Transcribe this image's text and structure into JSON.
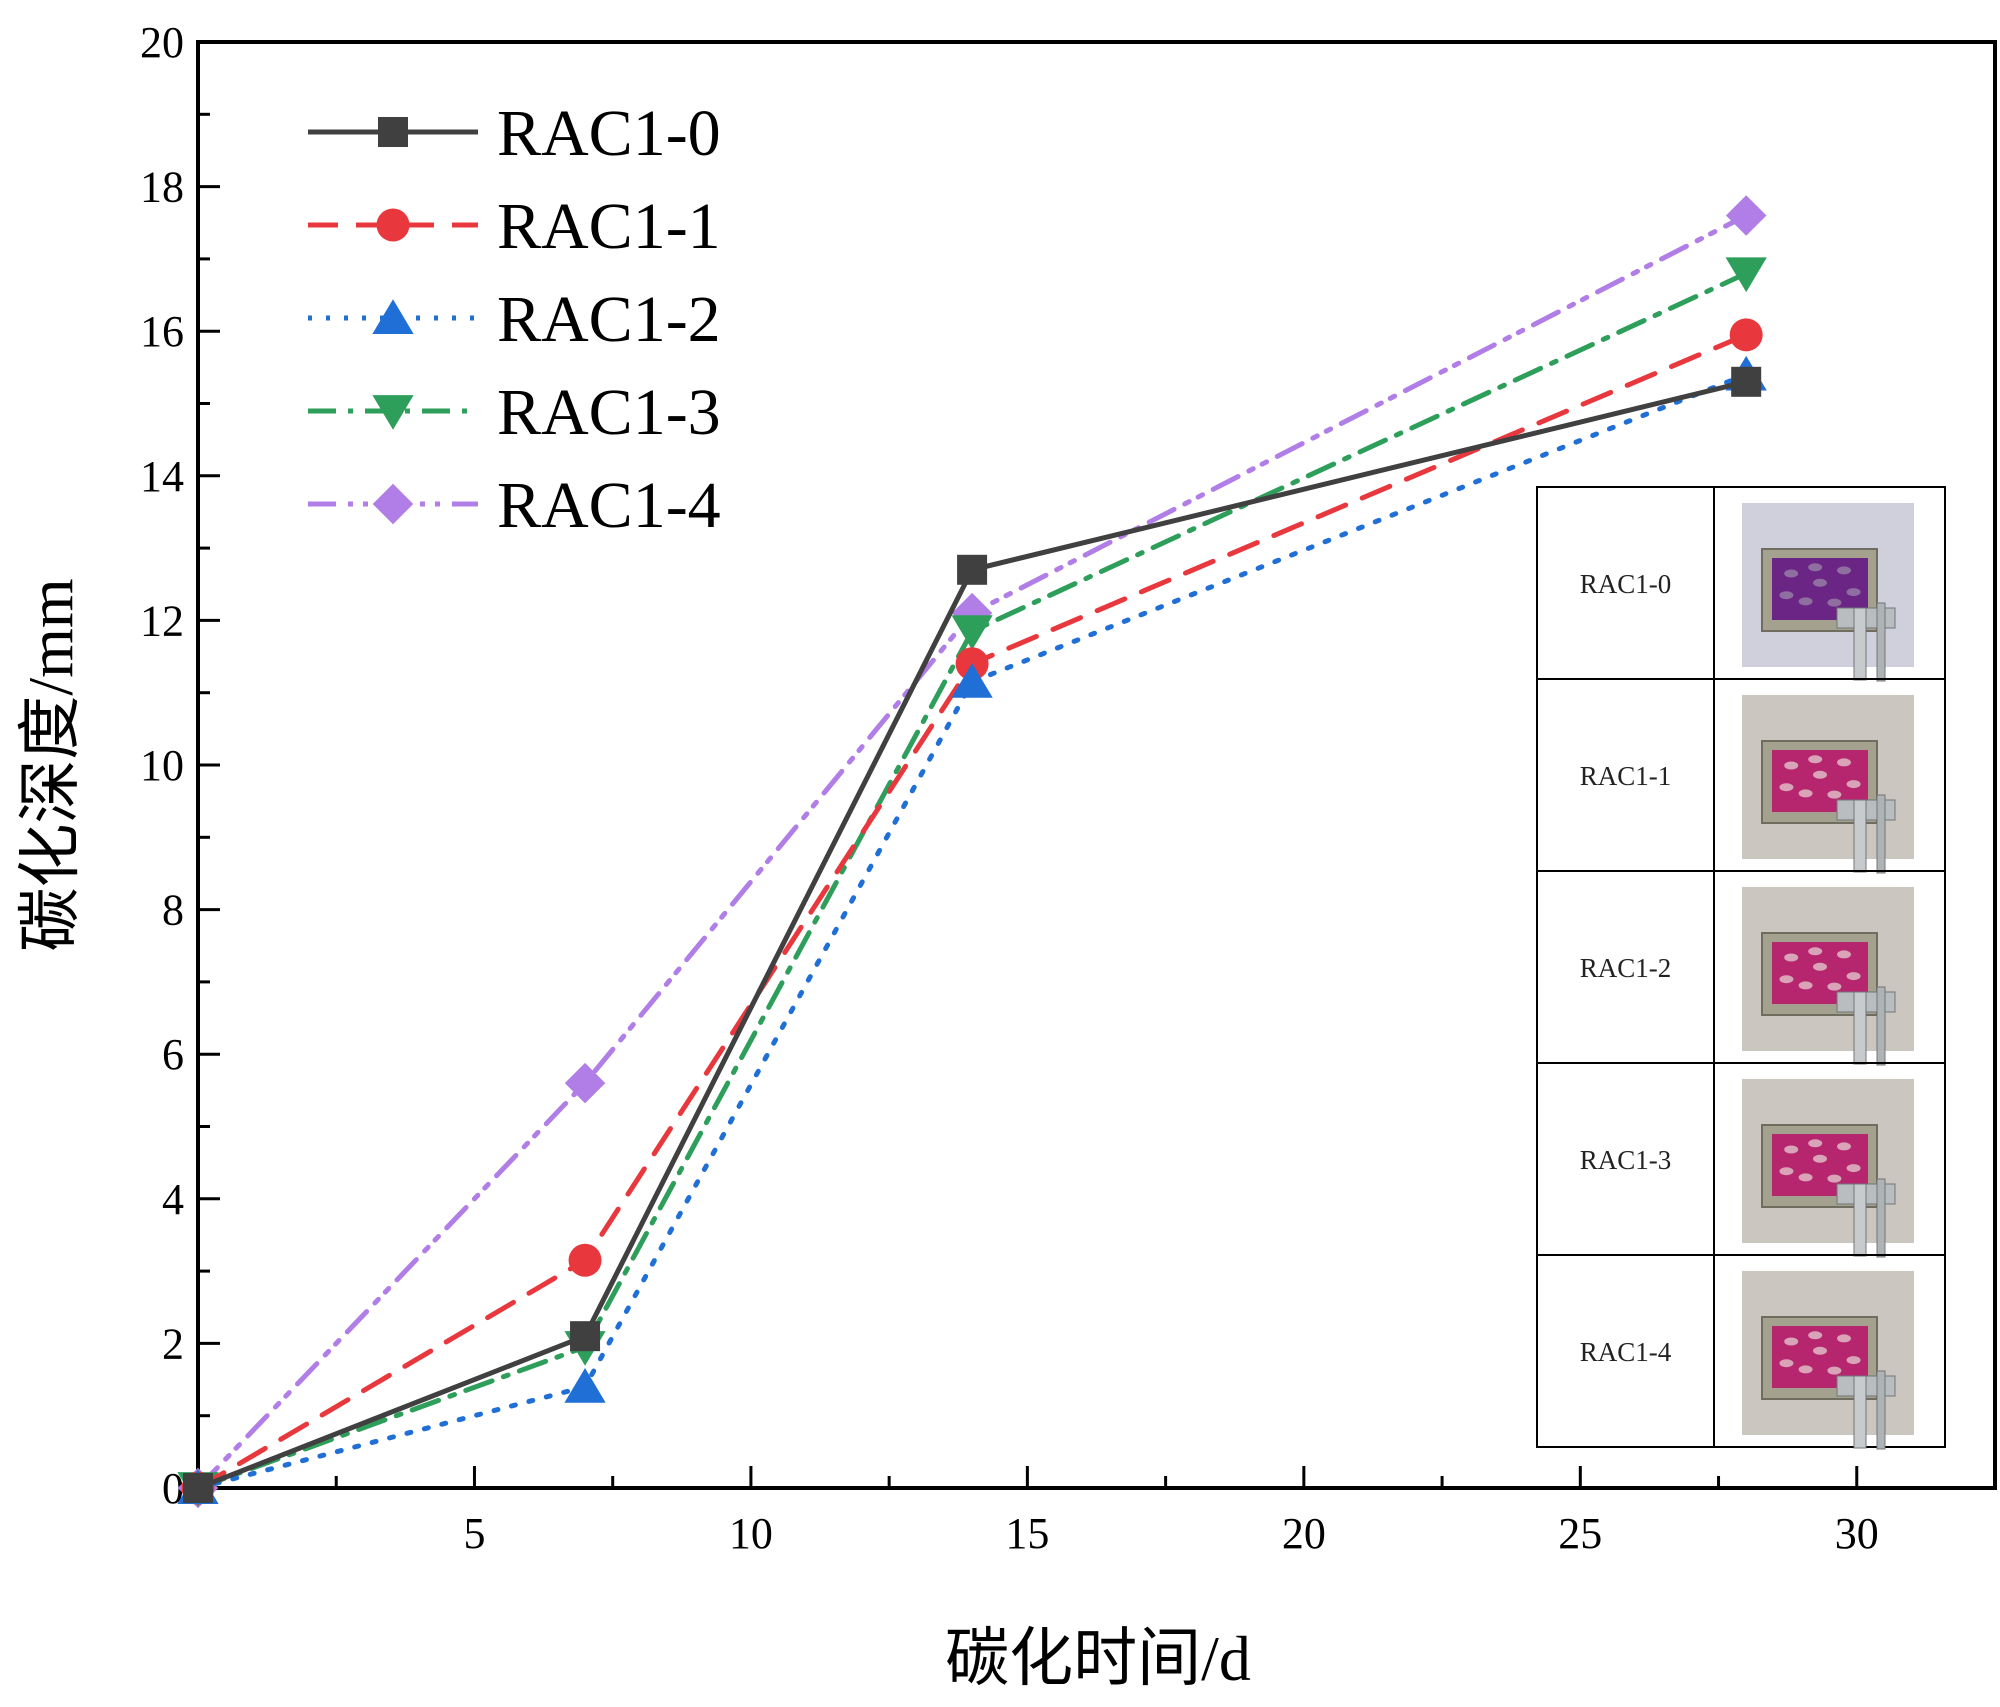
{
  "chart_data": {
    "type": "line",
    "title": "",
    "xlabel": "碳化时间/d",
    "ylabel": "碳化深度/mm",
    "x": [
      0,
      7,
      14,
      28
    ],
    "xlim": [
      0,
      32.5
    ],
    "ylim": [
      0,
      20
    ],
    "xticks": [
      5,
      10,
      15,
      20,
      25,
      30
    ],
    "yticks": [
      0,
      2,
      4,
      6,
      8,
      10,
      12,
      14,
      16,
      18,
      20
    ],
    "grid": false,
    "legend_position": "top-left",
    "series": [
      {
        "name": "RAC1-0",
        "values": [
          0,
          2.1,
          12.7,
          15.3
        ],
        "color": "#404040",
        "dash": "solid",
        "marker": "square"
      },
      {
        "name": "RAC1-1",
        "values": [
          0,
          3.15,
          11.4,
          15.95
        ],
        "color": "#e8383d",
        "dash": "dash",
        "marker": "circle"
      },
      {
        "name": "RAC1-2",
        "values": [
          0,
          1.4,
          11.15,
          15.4
        ],
        "color": "#1f6fd6",
        "dash": "dot",
        "marker": "triangle-up"
      },
      {
        "name": "RAC1-3",
        "values": [
          0,
          1.95,
          11.85,
          16.8
        ],
        "color": "#2e9e5b",
        "dash": "dashdot",
        "marker": "triangle-down"
      },
      {
        "name": "RAC1-4",
        "values": [
          0,
          5.6,
          12.1,
          17.6
        ],
        "color": "#b07ee6",
        "dash": "dashdotdot",
        "marker": "diamond"
      }
    ],
    "inset_table": {
      "rows": [
        "RAC1-0",
        "RAC1-1",
        "RAC1-2",
        "RAC1-3",
        "RAC1-4"
      ]
    }
  }
}
